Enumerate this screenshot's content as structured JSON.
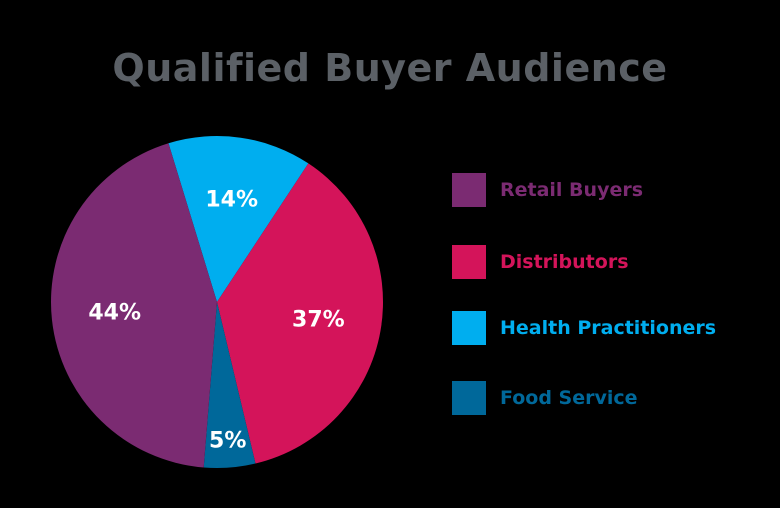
{
  "chart_data": {
    "type": "pie",
    "title": "Qualified Buyer Audience",
    "slices": [
      {
        "label": "Retail Buyers",
        "value": 44,
        "display": "44%",
        "color": "#7b2b72"
      },
      {
        "label": "Distributors",
        "value": 37,
        "display": "37%",
        "color": "#d4145a"
      },
      {
        "label": "Health Practitioners",
        "value": 14,
        "display": "14%",
        "color": "#00aeef"
      },
      {
        "label": "Food Service",
        "value": 5,
        "display": "5%",
        "color": "#00689a"
      }
    ],
    "legend_placement": "right"
  }
}
